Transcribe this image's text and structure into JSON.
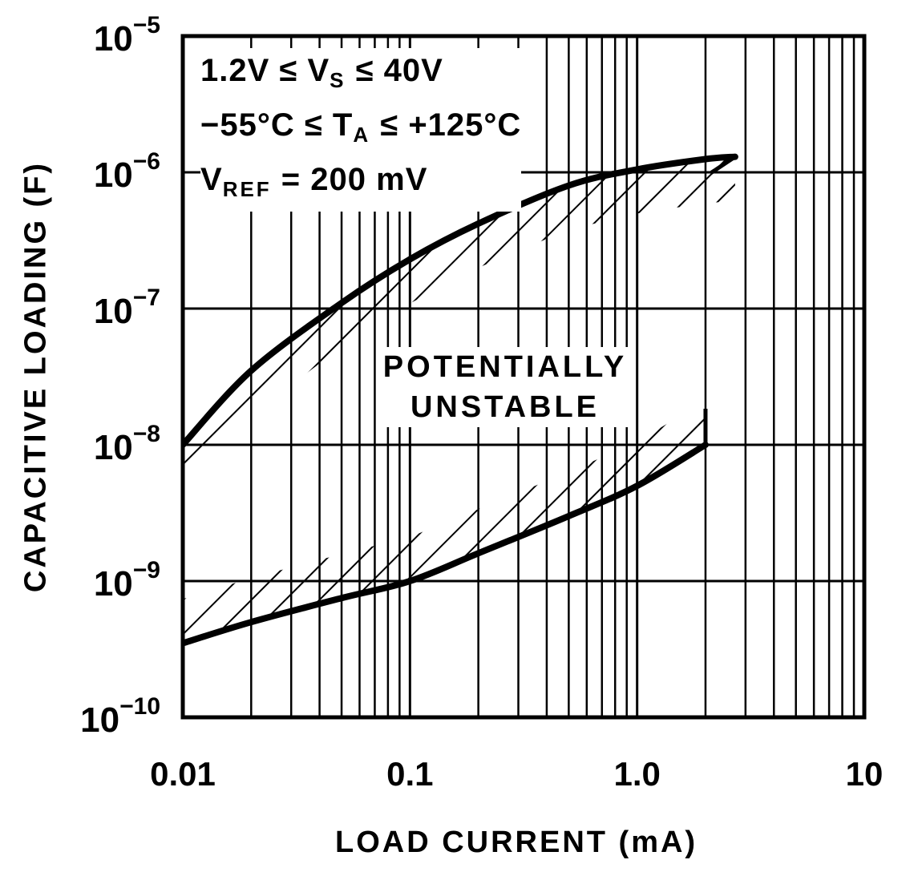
{
  "chart_data": {
    "type": "area",
    "title": "",
    "xlabel": "LOAD CURRENT (mA)",
    "ylabel": "CAPACITIVE LOADING (F)",
    "xscale": "log",
    "yscale": "log",
    "xlim": [
      0.01,
      10
    ],
    "ylim": [
      1e-10,
      1e-05
    ],
    "grid": true,
    "x_tick_labels": [
      "0.01",
      "0.1",
      "1.0",
      "10"
    ],
    "y_tick_labels": [
      {
        "base": "10",
        "exp": "−5"
      },
      {
        "base": "10",
        "exp": "−6"
      },
      {
        "base": "10",
        "exp": "−7"
      },
      {
        "base": "10",
        "exp": "−8"
      },
      {
        "base": "10",
        "exp": "−9"
      },
      {
        "base": "10",
        "exp": "−10"
      }
    ],
    "conditions": [
      {
        "text": "1.2V ≤ V",
        "sub": "S",
        "tail": " ≤ 40V"
      },
      {
        "text": "−55°C ≤ T",
        "sub": "A",
        "tail": " ≤ +125°C"
      },
      {
        "text": "V",
        "sub": "REF",
        "tail": " = 200 mV"
      }
    ],
    "annotations": [
      "POTENTIALLY",
      "UNSTABLE"
    ],
    "series": [
      {
        "name": "Upper stability boundary",
        "x": [
          0.01,
          0.02,
          0.05,
          0.1,
          0.2,
          0.5,
          1.0,
          2.0,
          2.7
        ],
        "values": [
          1e-08,
          3.5e-08,
          1.1e-07,
          2.3e-07,
          4.2e-07,
          8e-07,
          1.05e-06,
          1.25e-06,
          1.3e-06
        ]
      },
      {
        "name": "Lower stability boundary",
        "x": [
          0.01,
          0.02,
          0.05,
          0.1,
          0.2,
          0.5,
          1.0,
          2.0
        ],
        "values": [
          3.5e-10,
          5e-10,
          7.5e-10,
          1e-09,
          1.6e-09,
          3e-09,
          5e-09,
          1e-08
        ]
      }
    ],
    "shaded_region": "Between the two boundaries (hatched bands on inner side of each curve) is the POTENTIALLY UNSTABLE region"
  }
}
